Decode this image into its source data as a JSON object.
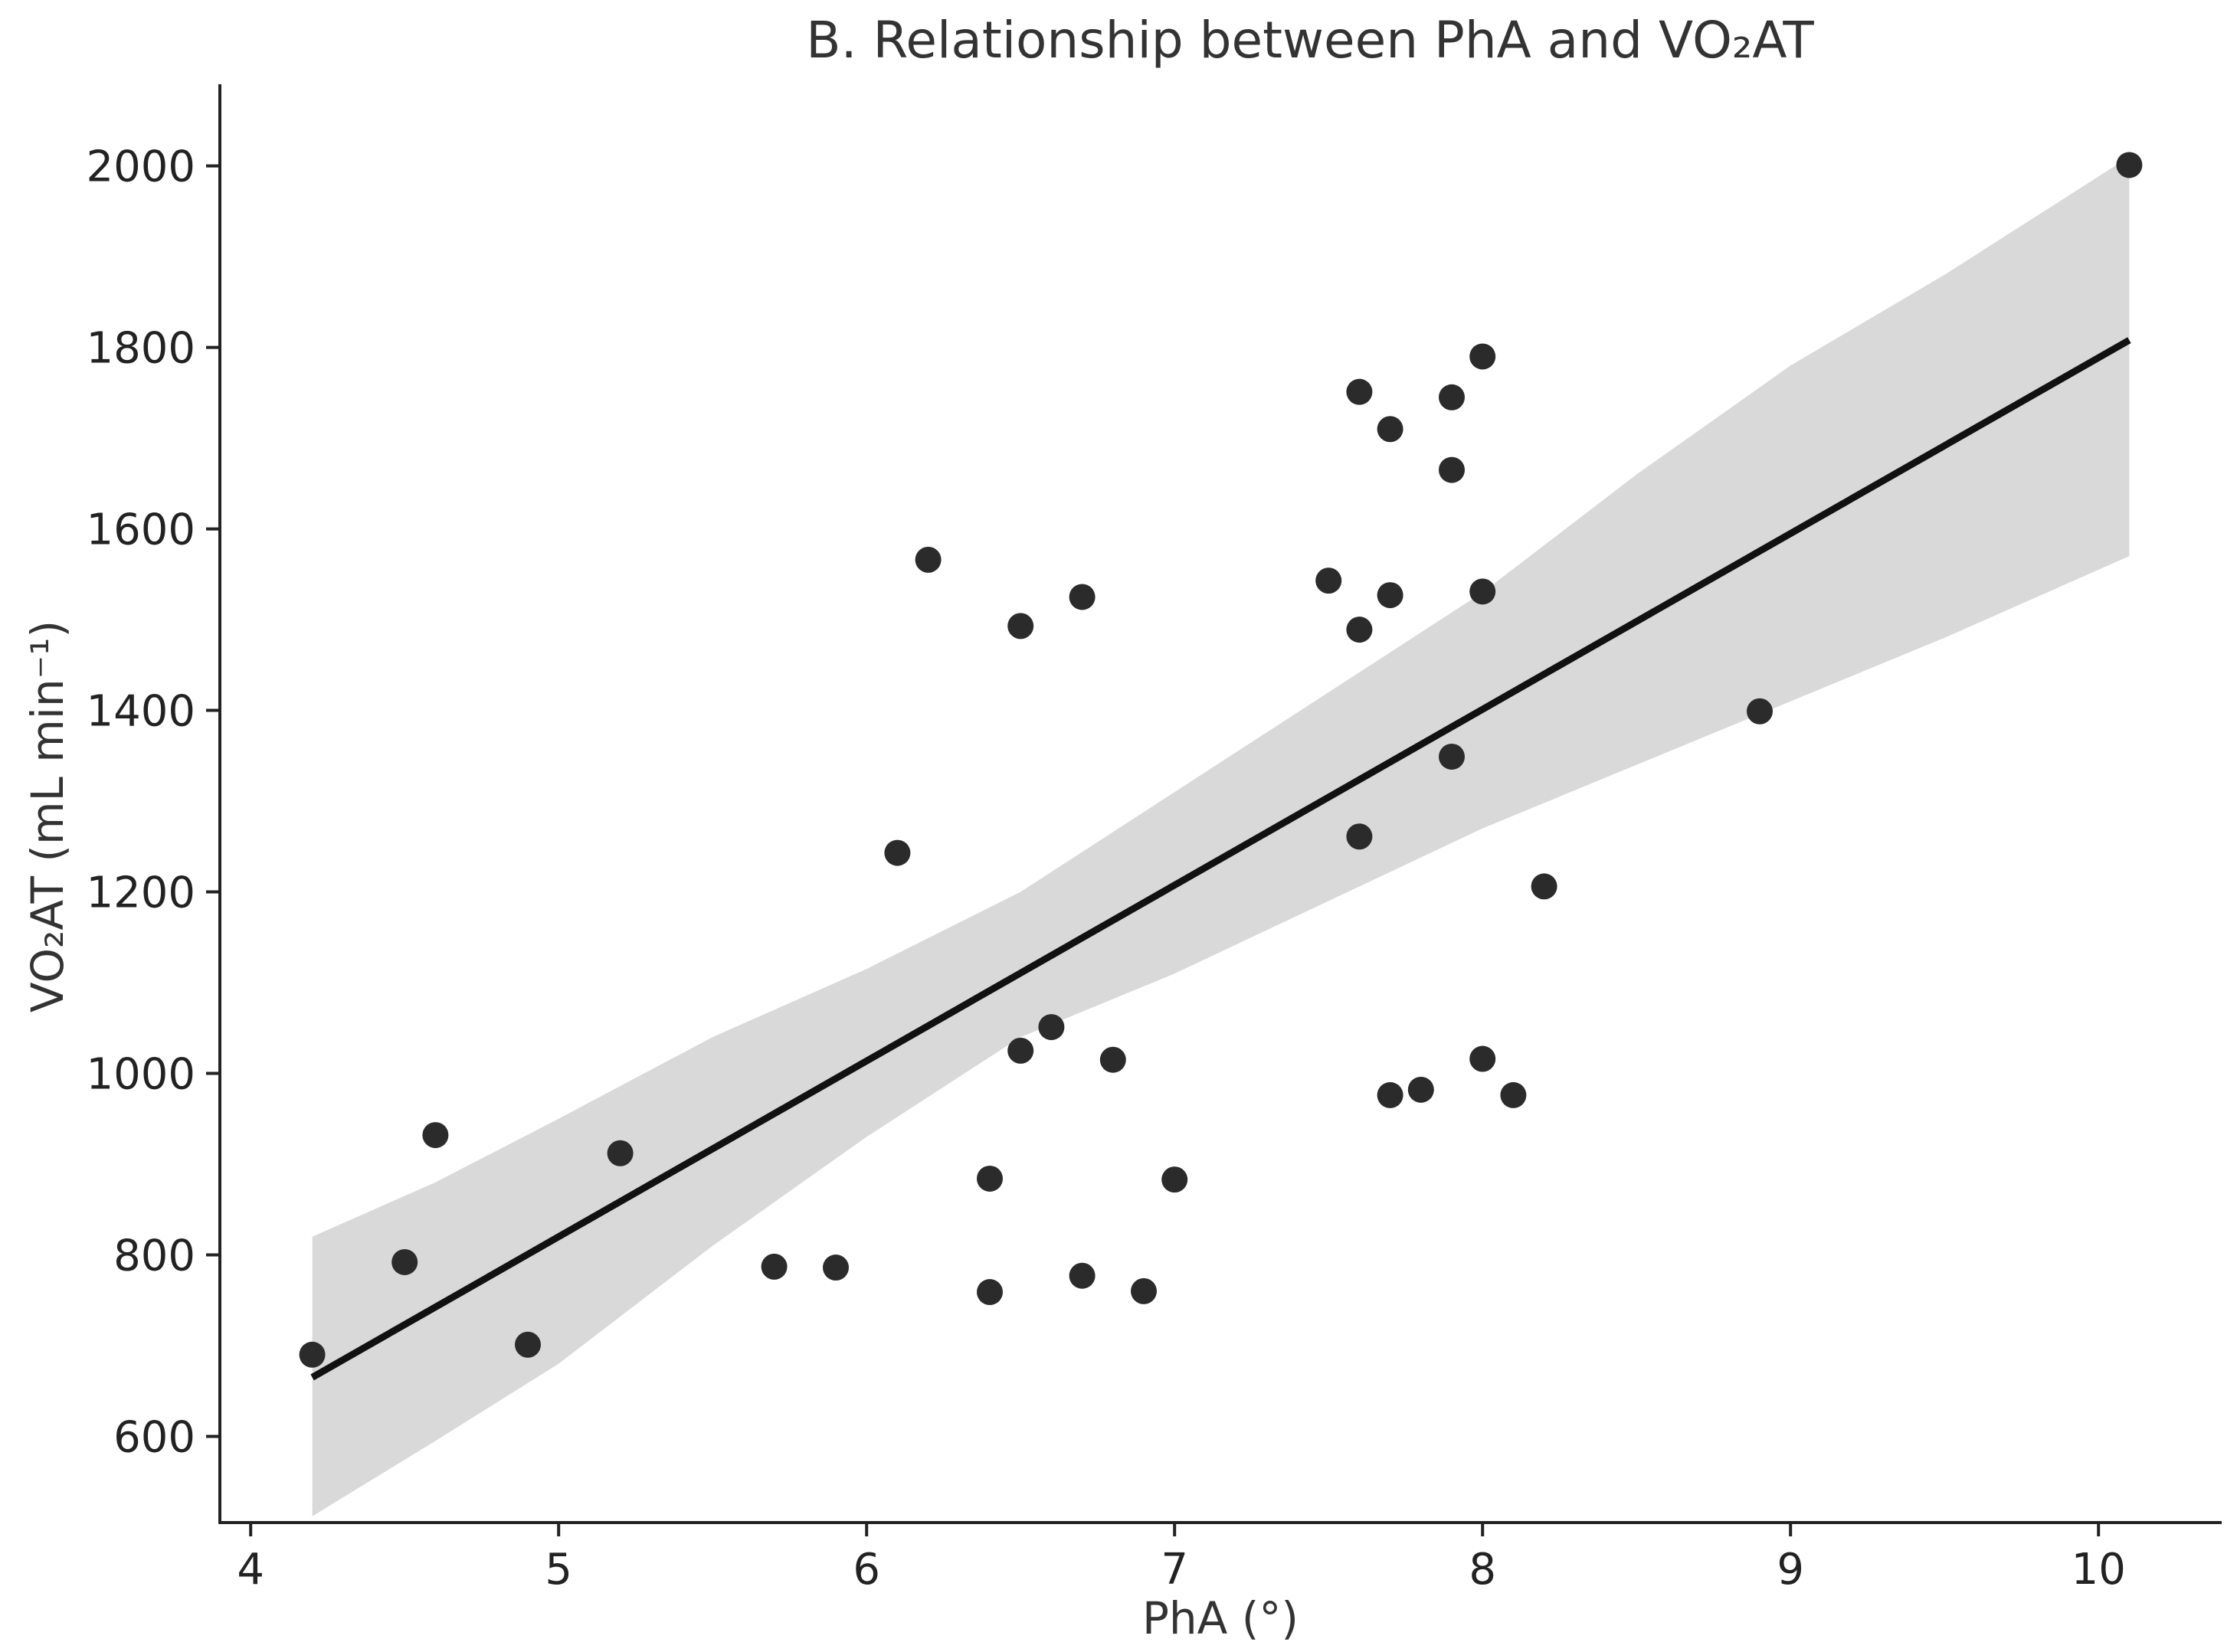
{
  "chart_data": {
    "type": "scatter",
    "title": "B. Relationship between PhA and VO₂AT",
    "xlabel": "PhA (°)",
    "ylabel": "VO₂AT (mL min⁻¹)",
    "xlim": [
      3.9,
      10.4
    ],
    "ylim": [
      505,
      2090
    ],
    "xticks": [
      4,
      5,
      6,
      7,
      8,
      9,
      10
    ],
    "yticks": [
      600,
      800,
      1000,
      1200,
      1400,
      1600,
      1800,
      2000
    ],
    "grid": false,
    "points": [
      {
        "x": 4.2,
        "y": 690
      },
      {
        "x": 4.5,
        "y": 792
      },
      {
        "x": 4.6,
        "y": 932
      },
      {
        "x": 4.9,
        "y": 701
      },
      {
        "x": 5.2,
        "y": 912
      },
      {
        "x": 5.7,
        "y": 787
      },
      {
        "x": 5.9,
        "y": 786
      },
      {
        "x": 6.1,
        "y": 1243
      },
      {
        "x": 6.2,
        "y": 1566
      },
      {
        "x": 6.4,
        "y": 884
      },
      {
        "x": 6.4,
        "y": 759
      },
      {
        "x": 6.5,
        "y": 1493
      },
      {
        "x": 6.5,
        "y": 1025
      },
      {
        "x": 6.6,
        "y": 1051
      },
      {
        "x": 6.7,
        "y": 1525
      },
      {
        "x": 6.7,
        "y": 777
      },
      {
        "x": 6.8,
        "y": 1015
      },
      {
        "x": 6.9,
        "y": 760
      },
      {
        "x": 7.0,
        "y": 883
      },
      {
        "x": 7.5,
        "y": 1543
      },
      {
        "x": 7.6,
        "y": 1751
      },
      {
        "x": 7.6,
        "y": 1489
      },
      {
        "x": 7.6,
        "y": 1261
      },
      {
        "x": 7.7,
        "y": 1710
      },
      {
        "x": 7.7,
        "y": 1527
      },
      {
        "x": 7.7,
        "y": 976
      },
      {
        "x": 7.8,
        "y": 982
      },
      {
        "x": 7.9,
        "y": 1745
      },
      {
        "x": 7.9,
        "y": 1665
      },
      {
        "x": 7.9,
        "y": 1349
      },
      {
        "x": 8.0,
        "y": 1790
      },
      {
        "x": 8.0,
        "y": 1531
      },
      {
        "x": 8.0,
        "y": 1016
      },
      {
        "x": 8.1,
        "y": 976
      },
      {
        "x": 8.2,
        "y": 1206
      },
      {
        "x": 8.9,
        "y": 1399
      },
      {
        "x": 10.1,
        "y": 2001
      }
    ],
    "regression": {
      "x": [
        4.2,
        10.1
      ],
      "y": [
        665,
        1808
      ]
    },
    "confidence_band": {
      "x": [
        4.2,
        4.6,
        5.0,
        5.5,
        6.0,
        6.5,
        7.0,
        7.5,
        8.0,
        8.5,
        9.0,
        9.5,
        10.1
      ],
      "upper": [
        820,
        880,
        950,
        1040,
        1115,
        1200,
        1310,
        1420,
        1530,
        1660,
        1780,
        1880,
        2010
      ],
      "lower": [
        512,
        595,
        680,
        810,
        930,
        1040,
        1110,
        1190,
        1270,
        1340,
        1410,
        1480,
        1570
      ]
    },
    "colors": {
      "points": "#2b2b2b",
      "line": "#111111",
      "band": "#d9d9d9",
      "axes": "#222222"
    }
  }
}
